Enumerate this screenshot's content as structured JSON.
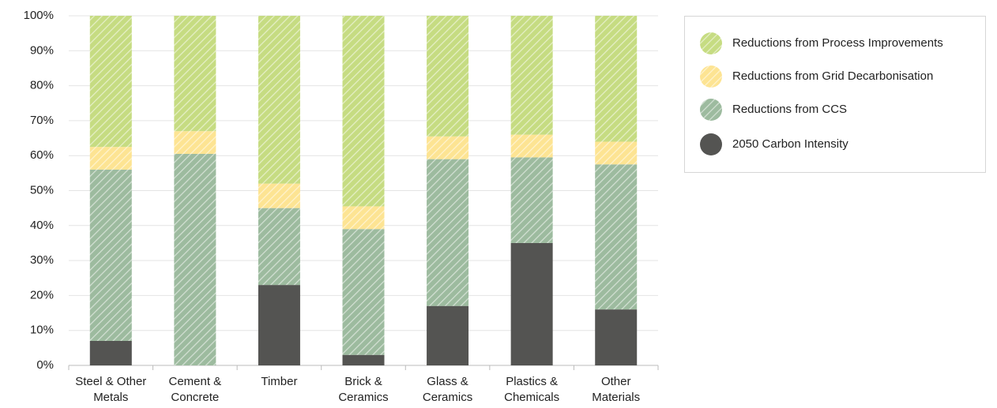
{
  "chart_data": {
    "type": "stacked_bar",
    "categories": [
      "Steel & Other Metals",
      "Cement & Concrete",
      "Timber",
      "Brick & Ceramics",
      "Glass & Ceramics",
      "Plastics & Chemicals",
      "Other Materials"
    ],
    "series": [
      {
        "name": "Reductions from Process Improvements",
        "color": "#c6dc82",
        "hatch": true,
        "values": [
          37.5,
          33,
          48,
          54.5,
          34.5,
          34,
          36
        ]
      },
      {
        "name": "Reductions from Grid Decarbonisation",
        "color": "#fde493",
        "hatch": true,
        "values": [
          6.5,
          6.5,
          7,
          6.5,
          6.5,
          6.5,
          6.5
        ]
      },
      {
        "name": "Reductions from CCS",
        "color": "#9dbb9f",
        "hatch": true,
        "values": [
          49,
          60.5,
          22,
          36,
          42,
          24.5,
          41.5
        ]
      },
      {
        "name": "2050 Carbon Intensity",
        "color": "#545452",
        "hatch": false,
        "values": [
          7,
          0,
          23,
          3,
          17,
          35,
          16
        ]
      }
    ],
    "ylim": [
      0,
      100
    ],
    "yticks": [
      {
        "value": 0,
        "label": "0%"
      },
      {
        "value": 10,
        "label": "10%"
      },
      {
        "value": 20,
        "label": "20%"
      },
      {
        "value": 30,
        "label": "30%"
      },
      {
        "value": 40,
        "label": "40%"
      },
      {
        "value": 50,
        "label": "50%"
      },
      {
        "value": 60,
        "label": "60%"
      },
      {
        "value": 70,
        "label": "70%"
      },
      {
        "value": 80,
        "label": "80%"
      },
      {
        "value": 90,
        "label": "90%"
      },
      {
        "value": 100,
        "label": "100%"
      }
    ],
    "grid": true,
    "legend": "right"
  }
}
